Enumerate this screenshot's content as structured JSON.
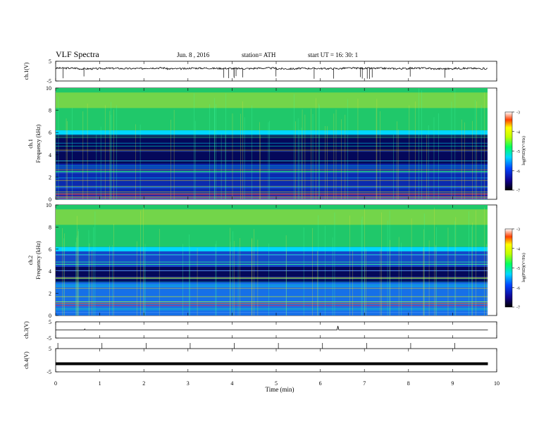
{
  "header": {
    "title": "VLF  Spectra",
    "date": "Jun. 8  , 2016",
    "station": "station= ATH",
    "start": "start  UT  =    16: 30: 1"
  },
  "colors": {
    "spectrogram_background": "#04085a",
    "trace": "#000000"
  },
  "chart_data": [
    {
      "type": "line",
      "ylabel": "ch.1(V)",
      "ylim": [
        -5,
        5
      ],
      "yticks": [
        "5",
        "-5"
      ],
      "description": "noisy waveform around +1.5 V",
      "x": [
        0,
        0.5,
        1,
        1.5,
        2,
        2.5,
        3,
        3.5,
        4,
        4.5,
        5,
        5.5,
        6,
        6.5,
        7,
        7.5,
        8,
        8.5,
        9,
        9.5,
        9.8
      ],
      "y": [
        1.5,
        1.2,
        1.4,
        1.3,
        1.6,
        1.2,
        1.5,
        1.4,
        1.3,
        1.5,
        1.2,
        1.4,
        1.3,
        1.5,
        1.4,
        1.3,
        1.5,
        1.2,
        1.4,
        1.3,
        1.5
      ]
    },
    {
      "type": "heatmap",
      "channel": "ch.1",
      "ylabel": "ch.1\nFrequency  (kHz)",
      "ylim": [
        0,
        10
      ],
      "yticks": [
        "0",
        "2",
        "4",
        "6",
        "8",
        "10"
      ],
      "colorbar": {
        "label": "log(PSD)(V²/Hz)",
        "range": [
          -7,
          -3
        ],
        "ticks": [
          "-3",
          "-4",
          "-5",
          "-6",
          "-7"
        ]
      },
      "bands_khz": [
        {
          "from": 6.2,
          "to": 10,
          "level": "high (green/yellow)"
        },
        {
          "from": 5.8,
          "to": 6.2,
          "level": "cyan"
        },
        {
          "from": 0,
          "to": 5.8,
          "level": "low (dark blue)"
        },
        {
          "from": 0,
          "to": 0.5,
          "level": "lines red/magenta"
        }
      ]
    },
    {
      "type": "heatmap",
      "channel": "ch.2",
      "ylabel": "ch.2\nFrequency  (kHz)",
      "ylim": [
        0,
        10
      ],
      "yticks": [
        "0",
        "2",
        "4",
        "6",
        "8",
        "10"
      ],
      "colorbar": {
        "label": "log(PSD)(V²/Hz)",
        "range": [
          -7,
          -3
        ],
        "ticks": [
          "-3",
          "-4",
          "-5",
          "-6",
          "-7"
        ]
      },
      "bands_khz": [
        {
          "from": 6.2,
          "to": 10,
          "level": "high (green/yellow)"
        },
        {
          "from": 3.0,
          "to": 6.2,
          "level": "mixed blue/cyan"
        },
        {
          "from": 0,
          "to": 3.0,
          "level": "cyan/green lines"
        }
      ]
    },
    {
      "type": "line",
      "ylabel": "ch.3(V)",
      "ylim": [
        -5,
        5
      ],
      "yticks": [
        "5",
        "-5"
      ],
      "description": "flat near 0 with spike at ~6.4 min",
      "x": [
        0,
        0.65,
        0.66,
        0.67,
        6.38,
        6.4,
        6.42,
        9.8
      ],
      "y": [
        0,
        0,
        0.6,
        0,
        0,
        2.5,
        0,
        0
      ]
    },
    {
      "type": "line",
      "ylabel": "ch.4(V)",
      "ylim": [
        -5,
        5
      ],
      "yticks": [
        "5",
        "-5"
      ],
      "description": "thick dense trace near -1.5 V",
      "x": [
        0,
        9.8
      ],
      "y": [
        -1.5,
        -1.5
      ]
    }
  ],
  "xaxis": {
    "label": "Time  (min)",
    "ticks": [
      "0",
      "1",
      "2",
      "3",
      "4",
      "5",
      "6",
      "7",
      "8",
      "9",
      "10"
    ],
    "range": [
      0,
      10
    ]
  }
}
